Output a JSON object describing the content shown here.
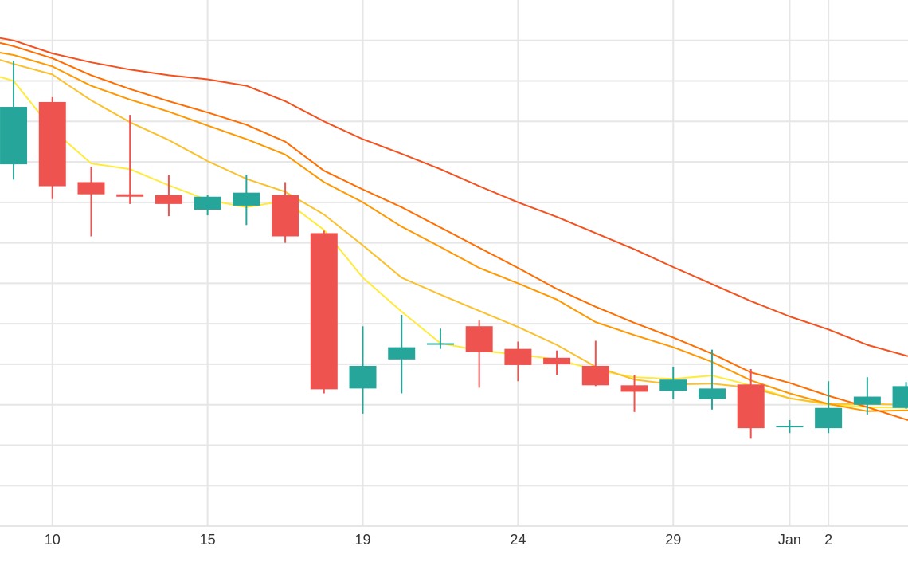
{
  "chart_data": {
    "type": "candlestick",
    "grid": true,
    "x_tick_labels": [
      {
        "label": "10",
        "day": 1
      },
      {
        "label": "15",
        "day": 5
      },
      {
        "label": "19",
        "day": 9
      },
      {
        "label": "24",
        "day": 13
      },
      {
        "label": "29",
        "day": 17
      },
      {
        "label": "Jan",
        "day": 20
      },
      {
        "label": "2",
        "day": 21
      }
    ],
    "x_range": [
      -0.35,
      23.05
    ],
    "y_range": [
      0,
      650
    ],
    "colors": {
      "up": "#26a69a",
      "down": "#ef5350",
      "grid": "#e6e6e6",
      "ma": [
        "#ffeb3b",
        "#fbc02d",
        "#ff9800",
        "#ff6d00",
        "#f4511e"
      ]
    },
    "candles": [
      {
        "day": 0,
        "open": 447,
        "high": 575,
        "low": 428,
        "close": 518
      },
      {
        "day": 1,
        "open": 524,
        "high": 530,
        "low": 404,
        "close": 420
      },
      {
        "day": 2,
        "open": 425,
        "high": 444,
        "low": 358,
        "close": 410
      },
      {
        "day": 3,
        "open": 410,
        "high": 508,
        "low": 398,
        "close": 407
      },
      {
        "day": 4,
        "open": 409,
        "high": 434,
        "low": 383,
        "close": 398
      },
      {
        "day": 5,
        "open": 391,
        "high": 409,
        "low": 384,
        "close": 407
      },
      {
        "day": 6,
        "open": 396,
        "high": 434,
        "low": 372,
        "close": 412
      },
      {
        "day": 7,
        "open": 409,
        "high": 425,
        "low": 350,
        "close": 358
      },
      {
        "day": 8,
        "open": 362,
        "high": 365,
        "low": 164,
        "close": 169
      },
      {
        "day": 9,
        "open": 170,
        "high": 247,
        "low": 139,
        "close": 198
      },
      {
        "day": 10,
        "open": 206,
        "high": 261,
        "low": 164,
        "close": 221
      },
      {
        "day": 11,
        "open": 226,
        "high": 244,
        "low": 219,
        "close": 226
      },
      {
        "day": 12,
        "open": 247,
        "high": 254,
        "low": 171,
        "close": 215
      },
      {
        "day": 13,
        "open": 219,
        "high": 228,
        "low": 179,
        "close": 199
      },
      {
        "day": 14,
        "open": 208,
        "high": 217,
        "low": 187,
        "close": 200
      },
      {
        "day": 15,
        "open": 198,
        "high": 229,
        "low": 173,
        "close": 174
      },
      {
        "day": 16,
        "open": 174,
        "high": 187,
        "low": 141,
        "close": 166
      },
      {
        "day": 17,
        "open": 167,
        "high": 197,
        "low": 157,
        "close": 181
      },
      {
        "day": 18,
        "open": 157,
        "high": 218,
        "low": 144,
        "close": 170
      },
      {
        "day": 19,
        "open": 175,
        "high": 194,
        "low": 108,
        "close": 121
      },
      {
        "day": 20,
        "open": 122,
        "high": 131,
        "low": 115,
        "close": 124
      },
      {
        "day": 21,
        "open": 121,
        "high": 179,
        "low": 115,
        "close": 146
      },
      {
        "day": 22,
        "open": 150,
        "high": 184,
        "low": 138,
        "close": 160
      },
      {
        "day": 23,
        "open": 146,
        "high": 178,
        "low": 145,
        "close": 173
      }
    ],
    "moving_averages": [
      {
        "color": "#ffeb3b",
        "points": [
          [
            -0.35,
            555
          ],
          [
            0,
            550
          ],
          [
            1,
            490
          ],
          [
            2,
            448
          ],
          [
            3,
            441
          ],
          [
            4,
            421
          ],
          [
            5,
            403
          ],
          [
            6,
            394
          ],
          [
            7,
            402
          ],
          [
            8,
            366
          ],
          [
            9,
            307
          ],
          [
            10,
            265
          ],
          [
            11,
            226
          ],
          [
            12,
            217
          ],
          [
            13,
            212
          ],
          [
            14,
            206
          ],
          [
            15,
            193
          ],
          [
            16,
            184
          ],
          [
            17,
            182
          ],
          [
            18,
            186
          ],
          [
            19,
            174
          ],
          [
            20,
            158
          ],
          [
            21,
            150
          ],
          [
            22,
            147
          ],
          [
            23.05,
            146
          ]
        ]
      },
      {
        "color": "#fbc02d",
        "points": [
          [
            -0.35,
            576
          ],
          [
            0,
            571
          ],
          [
            1,
            558
          ],
          [
            2,
            526
          ],
          [
            3,
            499
          ],
          [
            4,
            477
          ],
          [
            5,
            451
          ],
          [
            6,
            429
          ],
          [
            7,
            413
          ],
          [
            8,
            385
          ],
          [
            9,
            347
          ],
          [
            10,
            307
          ],
          [
            11,
            286
          ],
          [
            12,
            266
          ],
          [
            13,
            246
          ],
          [
            14,
            224
          ],
          [
            15,
            197
          ],
          [
            16,
            181
          ],
          [
            17,
            175
          ],
          [
            18,
            176
          ],
          [
            19,
            171
          ],
          [
            20,
            158
          ],
          [
            21,
            151
          ],
          [
            22,
            151
          ],
          [
            23.05,
            150
          ]
        ]
      },
      {
        "color": "#ff9800",
        "points": [
          [
            -0.35,
            585
          ],
          [
            0,
            582
          ],
          [
            1,
            568
          ],
          [
            2,
            544
          ],
          [
            3,
            527
          ],
          [
            4,
            512
          ],
          [
            5,
            495
          ],
          [
            6,
            478
          ],
          [
            7,
            459
          ],
          [
            8,
            425
          ],
          [
            9,
            400
          ],
          [
            10,
            370
          ],
          [
            11,
            345
          ],
          [
            12,
            319
          ],
          [
            13,
            300
          ],
          [
            14,
            280
          ],
          [
            15,
            252
          ],
          [
            16,
            236
          ],
          [
            17,
            221
          ],
          [
            18,
            203
          ],
          [
            19,
            180
          ],
          [
            20,
            164
          ],
          [
            21,
            151
          ],
          [
            22,
            142
          ],
          [
            23.05,
            143
          ]
        ]
      },
      {
        "color": "#ff6d00",
        "points": [
          [
            -0.35,
            597
          ],
          [
            0,
            593
          ],
          [
            1,
            578
          ],
          [
            2,
            557
          ],
          [
            3,
            540
          ],
          [
            4,
            525
          ],
          [
            5,
            511
          ],
          [
            6,
            496
          ],
          [
            7,
            475
          ],
          [
            8,
            439
          ],
          [
            9,
            416
          ],
          [
            10,
            394
          ],
          [
            11,
            369
          ],
          [
            12,
            344
          ],
          [
            13,
            319
          ],
          [
            14,
            293
          ],
          [
            15,
            271
          ],
          [
            16,
            251
          ],
          [
            17,
            233
          ],
          [
            18,
            213
          ],
          [
            19,
            190
          ],
          [
            20,
            177
          ],
          [
            21,
            161
          ],
          [
            22,
            147
          ],
          [
            23.05,
            131
          ]
        ]
      },
      {
        "color": "#f4511e",
        "points": [
          [
            -0.35,
            603
          ],
          [
            0,
            600
          ],
          [
            1,
            584
          ],
          [
            2,
            573
          ],
          [
            3,
            564
          ],
          [
            4,
            557
          ],
          [
            5,
            552
          ],
          [
            6,
            544
          ],
          [
            7,
            525
          ],
          [
            8,
            500
          ],
          [
            9,
            478
          ],
          [
            10,
            460
          ],
          [
            11,
            441
          ],
          [
            12,
            420
          ],
          [
            13,
            400
          ],
          [
            14,
            382
          ],
          [
            15,
            362
          ],
          [
            16,
            342
          ],
          [
            17,
            320
          ],
          [
            18,
            299
          ],
          [
            19,
            278
          ],
          [
            20,
            259
          ],
          [
            21,
            243
          ],
          [
            22,
            224
          ],
          [
            23.05,
            210
          ]
        ]
      }
    ]
  }
}
